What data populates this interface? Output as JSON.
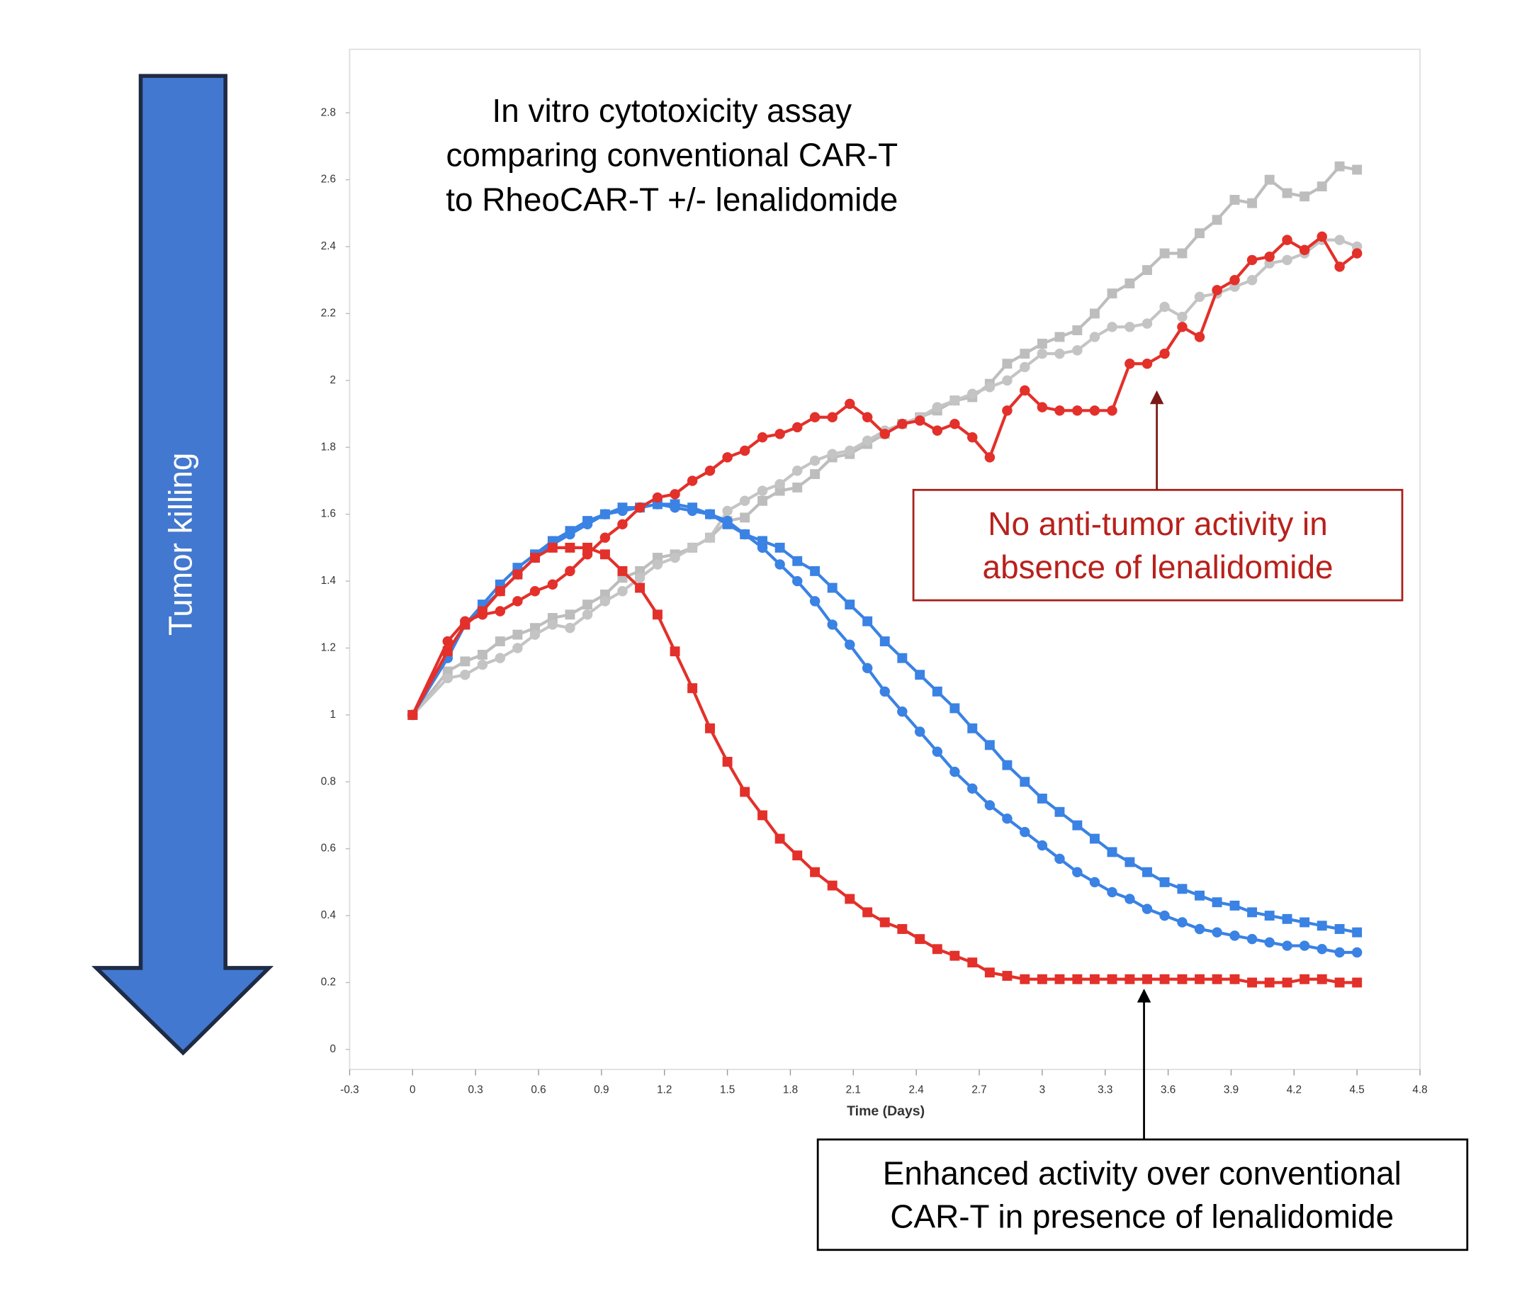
{
  "chart_data": {
    "type": "line",
    "title": [
      "In vitro cytotoxicity assay",
      "comparing conventional CAR-T",
      "to RheoCAR-T +/- lenalidomide"
    ],
    "arrow_label": "Tumor killing",
    "xlabel": "Time (Days)",
    "annotations": [
      {
        "lines": [
          "No anti-tumor activity in",
          "absence of lenalidomide"
        ],
        "color": "#b8211c"
      },
      {
        "lines": [
          "Enhanced activity over conventional",
          "CAR-T in presence of lenalidomide"
        ],
        "color": "#000000"
      }
    ],
    "xlim": [
      -0.3,
      4.8
    ],
    "xticks": [
      -0.3,
      0,
      0.3,
      0.6,
      0.9,
      1.2,
      1.5,
      1.8,
      2.1,
      2.4,
      2.7,
      3,
      3.3,
      3.6,
      3.9,
      4.2,
      4.5,
      4.8
    ],
    "ylim": [
      -0.06,
      2.99
    ],
    "yticks": [
      0,
      0.2,
      0.4,
      0.6,
      0.8,
      1,
      1.2,
      1.4,
      1.6,
      1.8,
      2,
      2.2,
      2.4,
      2.6,
      2.8
    ],
    "x": [
      0,
      0.167,
      0.25,
      0.333,
      0.417,
      0.5,
      0.583,
      0.667,
      0.75,
      0.833,
      0.917,
      1,
      1.083,
      1.167,
      1.25,
      1.333,
      1.417,
      1.5,
      1.583,
      1.667,
      1.75,
      1.833,
      1.917,
      2,
      2.083,
      2.167,
      2.25,
      2.333,
      2.417,
      2.5,
      2.583,
      2.667,
      2.75,
      2.833,
      2.917,
      3,
      3.083,
      3.167,
      3.25,
      3.333,
      3.417,
      3.5,
      3.583,
      3.667,
      3.75,
      3.833,
      3.917,
      4,
      4.083,
      4.167,
      4.25,
      4.333,
      4.417,
      4.5
    ],
    "series": [
      {
        "color": "#bdbdbd",
        "marker": "square",
        "values": [
          1.0,
          1.13,
          1.16,
          1.18,
          1.22,
          1.24,
          1.26,
          1.29,
          1.3,
          1.33,
          1.36,
          1.41,
          1.43,
          1.47,
          1.48,
          1.5,
          1.53,
          1.58,
          1.59,
          1.64,
          1.67,
          1.68,
          1.72,
          1.77,
          1.78,
          1.81,
          1.84,
          1.87,
          1.89,
          1.91,
          1.94,
          1.95,
          1.99,
          2.05,
          2.08,
          2.11,
          2.13,
          2.15,
          2.2,
          2.26,
          2.29,
          2.33,
          2.38,
          2.38,
          2.44,
          2.48,
          2.54,
          2.53,
          2.6,
          2.56,
          2.55,
          2.58,
          2.64,
          2.63
        ]
      },
      {
        "color": "#c4c4c4",
        "marker": "circle",
        "values": [
          1.0,
          1.11,
          1.12,
          1.15,
          1.17,
          1.2,
          1.24,
          1.27,
          1.26,
          1.3,
          1.34,
          1.37,
          1.41,
          1.45,
          1.47,
          1.5,
          1.53,
          1.61,
          1.64,
          1.67,
          1.69,
          1.73,
          1.76,
          1.78,
          1.79,
          1.82,
          1.85,
          1.87,
          1.89,
          1.92,
          1.94,
          1.96,
          1.98,
          2.0,
          2.04,
          2.08,
          2.08,
          2.09,
          2.13,
          2.16,
          2.16,
          2.17,
          2.22,
          2.19,
          2.25,
          2.26,
          2.28,
          2.3,
          2.35,
          2.36,
          2.38,
          2.42,
          2.42,
          2.4
        ]
      },
      {
        "color": "#3a82e4",
        "marker": "square",
        "values": [
          1.0,
          1.19,
          1.27,
          1.33,
          1.39,
          1.44,
          1.48,
          1.52,
          1.55,
          1.58,
          1.6,
          1.62,
          1.62,
          1.63,
          1.63,
          1.62,
          1.6,
          1.57,
          1.54,
          1.52,
          1.5,
          1.46,
          1.43,
          1.38,
          1.33,
          1.28,
          1.22,
          1.17,
          1.12,
          1.07,
          1.02,
          0.96,
          0.91,
          0.85,
          0.8,
          0.75,
          0.71,
          0.67,
          0.63,
          0.59,
          0.56,
          0.53,
          0.5,
          0.48,
          0.46,
          0.44,
          0.43,
          0.41,
          0.4,
          0.39,
          0.38,
          0.37,
          0.36,
          0.35
        ]
      },
      {
        "color": "#3a82e4",
        "marker": "circle",
        "values": [
          1.0,
          1.17,
          1.27,
          1.32,
          1.37,
          1.42,
          1.47,
          1.51,
          1.54,
          1.57,
          1.6,
          1.61,
          1.62,
          1.63,
          1.62,
          1.61,
          1.6,
          1.58,
          1.54,
          1.5,
          1.45,
          1.4,
          1.34,
          1.27,
          1.21,
          1.14,
          1.07,
          1.01,
          0.95,
          0.89,
          0.83,
          0.78,
          0.73,
          0.69,
          0.65,
          0.61,
          0.57,
          0.53,
          0.5,
          0.47,
          0.45,
          0.42,
          0.4,
          0.38,
          0.36,
          0.35,
          0.34,
          0.33,
          0.32,
          0.31,
          0.31,
          0.3,
          0.29,
          0.29
        ]
      },
      {
        "color": "#e3302a",
        "marker": "circle",
        "values": [
          1.0,
          1.22,
          1.28,
          1.3,
          1.31,
          1.34,
          1.37,
          1.39,
          1.43,
          1.48,
          1.53,
          1.57,
          1.62,
          1.65,
          1.66,
          1.7,
          1.73,
          1.77,
          1.79,
          1.83,
          1.84,
          1.86,
          1.89,
          1.89,
          1.93,
          1.89,
          1.84,
          1.87,
          1.88,
          1.85,
          1.87,
          1.83,
          1.77,
          1.91,
          1.97,
          1.92,
          1.91,
          1.91,
          1.91,
          1.91,
          2.05,
          2.05,
          2.08,
          2.16,
          2.13,
          2.27,
          2.3,
          2.36,
          2.37,
          2.42,
          2.39,
          2.43,
          2.34,
          2.38
        ]
      },
      {
        "color": "#e3302a",
        "marker": "square",
        "values": [
          1.0,
          1.19,
          1.27,
          1.31,
          1.37,
          1.42,
          1.47,
          1.5,
          1.5,
          1.5,
          1.48,
          1.43,
          1.38,
          1.3,
          1.19,
          1.08,
          0.96,
          0.86,
          0.77,
          0.7,
          0.63,
          0.58,
          0.53,
          0.49,
          0.45,
          0.41,
          0.38,
          0.36,
          0.33,
          0.3,
          0.28,
          0.26,
          0.23,
          0.22,
          0.21,
          0.21,
          0.21,
          0.21,
          0.21,
          0.21,
          0.21,
          0.21,
          0.21,
          0.21,
          0.21,
          0.21,
          0.21,
          0.2,
          0.2,
          0.2,
          0.21,
          0.21,
          0.2,
          0.2
        ]
      }
    ]
  }
}
